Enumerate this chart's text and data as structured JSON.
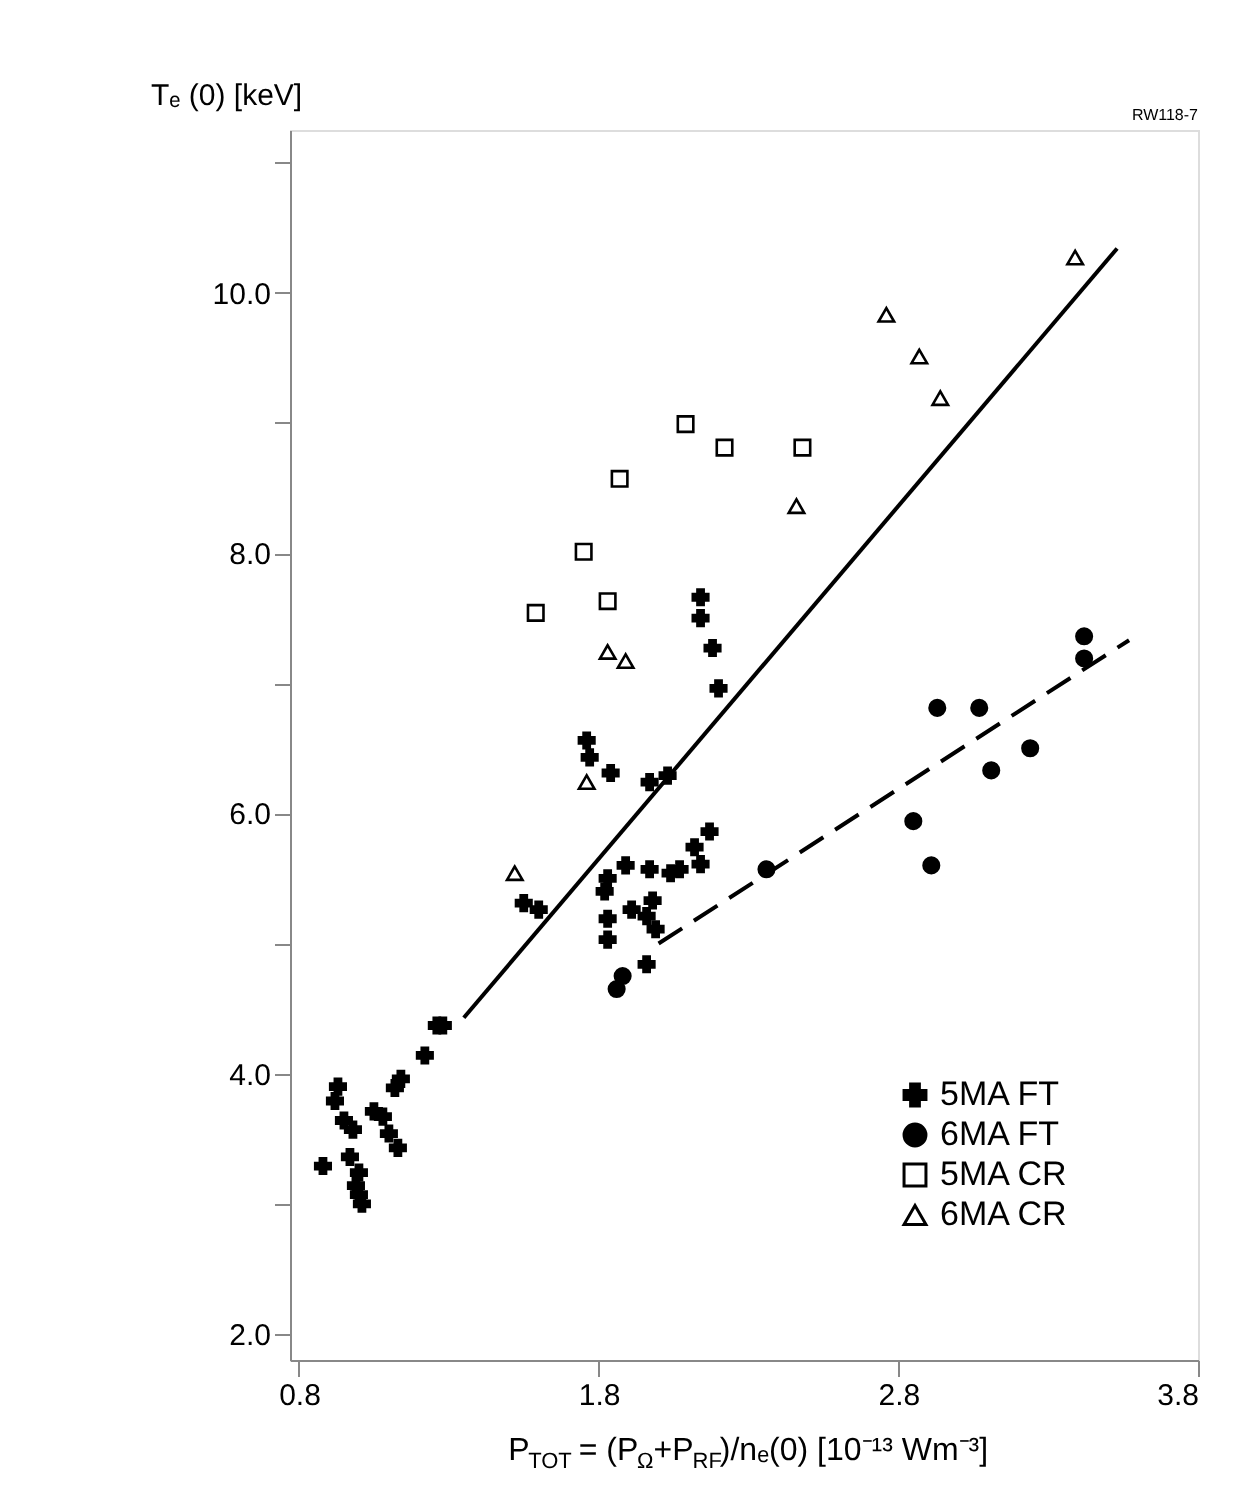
{
  "chart_data": {
    "type": "scatter",
    "xlabel": "P$_{TOT}$ = (P$_{Ω}$+P$_{RF}$)/nₑ(0) [10⁻¹³ Wm⁻³]",
    "ylabel": "Tₑ (0) [keV]",
    "annotations": [
      "RW118-7"
    ],
    "xlim": [
      0.77,
      3.8
    ],
    "xticks": [
      {
        "value": 0.8,
        "label": "0.8"
      },
      {
        "value": 1.8,
        "label": "1.8"
      },
      {
        "value": 2.8,
        "label": "2.8"
      },
      {
        "value": 3.8,
        "label": "3.8"
      }
    ],
    "ylim": [
      1.8,
      11.25
    ],
    "yticks": [
      {
        "value": 2,
        "label": "2.0"
      },
      {
        "value": 3,
        "label": null
      },
      {
        "value": 4,
        "label": "4.0"
      },
      {
        "value": 5,
        "label": null
      },
      {
        "value": 6,
        "label": "6.0"
      },
      {
        "value": 7,
        "label": null
      },
      {
        "value": 8,
        "label": "8.0"
      },
      {
        "value": 9,
        "label": null
      },
      {
        "value": 10,
        "label": "10.0"
      },
      {
        "value": 11,
        "label": null
      }
    ],
    "grid": false,
    "legend": "bottom right",
    "series": [
      {
        "name": "5MA FT",
        "marker": "cross",
        "color": "#000000",
        "x": [
          0.93,
          0.92,
          0.95,
          0.98,
          0.88,
          0.97,
          1.0,
          0.99,
          1.01,
          1.0,
          1.05,
          1.08,
          1.1,
          1.13,
          1.14,
          1.12,
          1.22,
          1.26,
          1.28,
          1.96,
          1.76,
          1.77,
          1.84,
          1.6,
          1.55,
          1.97,
          2.03,
          1.83,
          1.82,
          1.83,
          1.89,
          1.91,
          1.96,
          1.99,
          1.83,
          1.97,
          2.04,
          2.14,
          2.14,
          2.18,
          2.2,
          2.17,
          2.12,
          2.14,
          2.07,
          1.98
        ],
        "values": [
          3.9,
          3.79,
          3.64,
          3.57,
          3.29,
          3.36,
          3.24,
          3.14,
          3.0,
          3.07,
          3.71,
          3.67,
          3.54,
          3.43,
          3.96,
          3.89,
          4.14,
          4.37,
          4.37,
          4.84,
          6.56,
          6.43,
          6.31,
          5.26,
          5.31,
          6.24,
          6.29,
          5.5,
          5.4,
          5.19,
          5.6,
          5.26,
          5.21,
          5.11,
          5.03,
          5.57,
          5.54,
          7.66,
          7.5,
          7.27,
          6.96,
          5.86,
          5.74,
          5.61,
          5.57,
          5.33
        ]
      },
      {
        "name": "6MA FT",
        "marker": "circle",
        "color": "#000000",
        "x": [
          3.42,
          3.42,
          2.93,
          3.07,
          3.24,
          3.11,
          2.85,
          2.91,
          2.36,
          1.86,
          1.88
        ],
        "values": [
          7.36,
          7.19,
          6.81,
          6.81,
          6.5,
          6.33,
          5.94,
          5.6,
          5.57,
          4.65,
          4.75
        ]
      },
      {
        "name": "5MA CR",
        "marker": "square",
        "color": "#000000",
        "x": [
          1.75,
          1.87,
          2.09,
          2.22,
          2.48,
          1.59,
          1.83
        ],
        "values": [
          8.01,
          8.57,
          8.99,
          8.81,
          8.81,
          7.54,
          7.63
        ]
      },
      {
        "name": "6MA CR",
        "marker": "triangle",
        "color": "#000000",
        "x": [
          2.76,
          2.87,
          2.94,
          2.46,
          3.39,
          1.83,
          1.89,
          1.76,
          1.52
        ],
        "values": [
          9.83,
          9.51,
          9.19,
          8.36,
          10.27,
          7.24,
          7.17,
          6.24,
          5.54
        ]
      },
      {
        "type": "line",
        "line_style": "solid",
        "color": "#000000",
        "x": [
          1.35,
          3.53
        ],
        "values": [
          4.43,
          10.34
        ]
      },
      {
        "type": "line",
        "line_style": "dashed",
        "color": "#000000",
        "x": [
          2.0,
          3.57
        ],
        "values": [
          5.0,
          7.33
        ]
      }
    ]
  }
}
